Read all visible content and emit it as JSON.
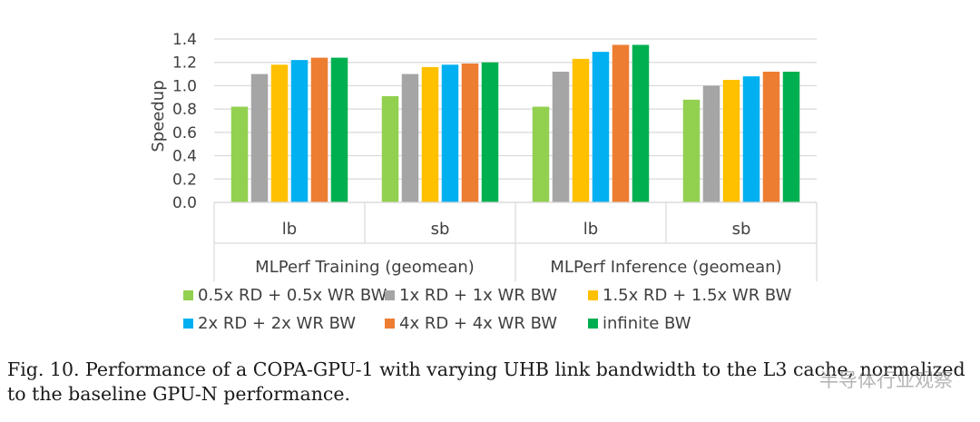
{
  "chart_data": {
    "type": "bar",
    "ylabel": "Speedup",
    "xlabel": "",
    "ylim": [
      0,
      1.4
    ],
    "yticks": [
      "0.0",
      "0.2",
      "0.4",
      "0.6",
      "0.8",
      "1.0",
      "1.2",
      "1.4"
    ],
    "grid": true,
    "legend_position": "bottom",
    "categories": [
      "lb",
      "sb",
      "lb",
      "sb"
    ],
    "groups": [
      {
        "label": "MLPerf Training (geomean)",
        "categories": [
          "lb",
          "sb"
        ]
      },
      {
        "label": "MLPerf Inference (geomean)",
        "categories": [
          "lb",
          "sb"
        ]
      }
    ],
    "series": [
      {
        "name": "0.5x RD + 0.5x WR BW",
        "color": "#92d050",
        "values": [
          0.82,
          0.91,
          0.82,
          0.88
        ]
      },
      {
        "name": "1x RD + 1x WR BW",
        "color": "#a5a5a5",
        "values": [
          1.1,
          1.1,
          1.12,
          1.0
        ]
      },
      {
        "name": "1.5x RD + 1.5x WR BW",
        "color": "#ffc000",
        "values": [
          1.18,
          1.16,
          1.23,
          1.05
        ]
      },
      {
        "name": "2x RD + 2x WR BW",
        "color": "#00b0f0",
        "values": [
          1.22,
          1.18,
          1.29,
          1.08
        ]
      },
      {
        "name": "4x RD + 4x WR BW",
        "color": "#ed7d31",
        "values": [
          1.24,
          1.19,
          1.35,
          1.12
        ]
      },
      {
        "name": "infinite BW",
        "color": "#00b050",
        "values": [
          1.24,
          1.2,
          1.35,
          1.12
        ]
      }
    ]
  },
  "caption": "Fig. 10.  Performance of a COPA-GPU-1 with varying UHB link bandwidth to the L3 cache, normalized to the baseline GPU-N performance.",
  "watermark": "半导体行业观察"
}
